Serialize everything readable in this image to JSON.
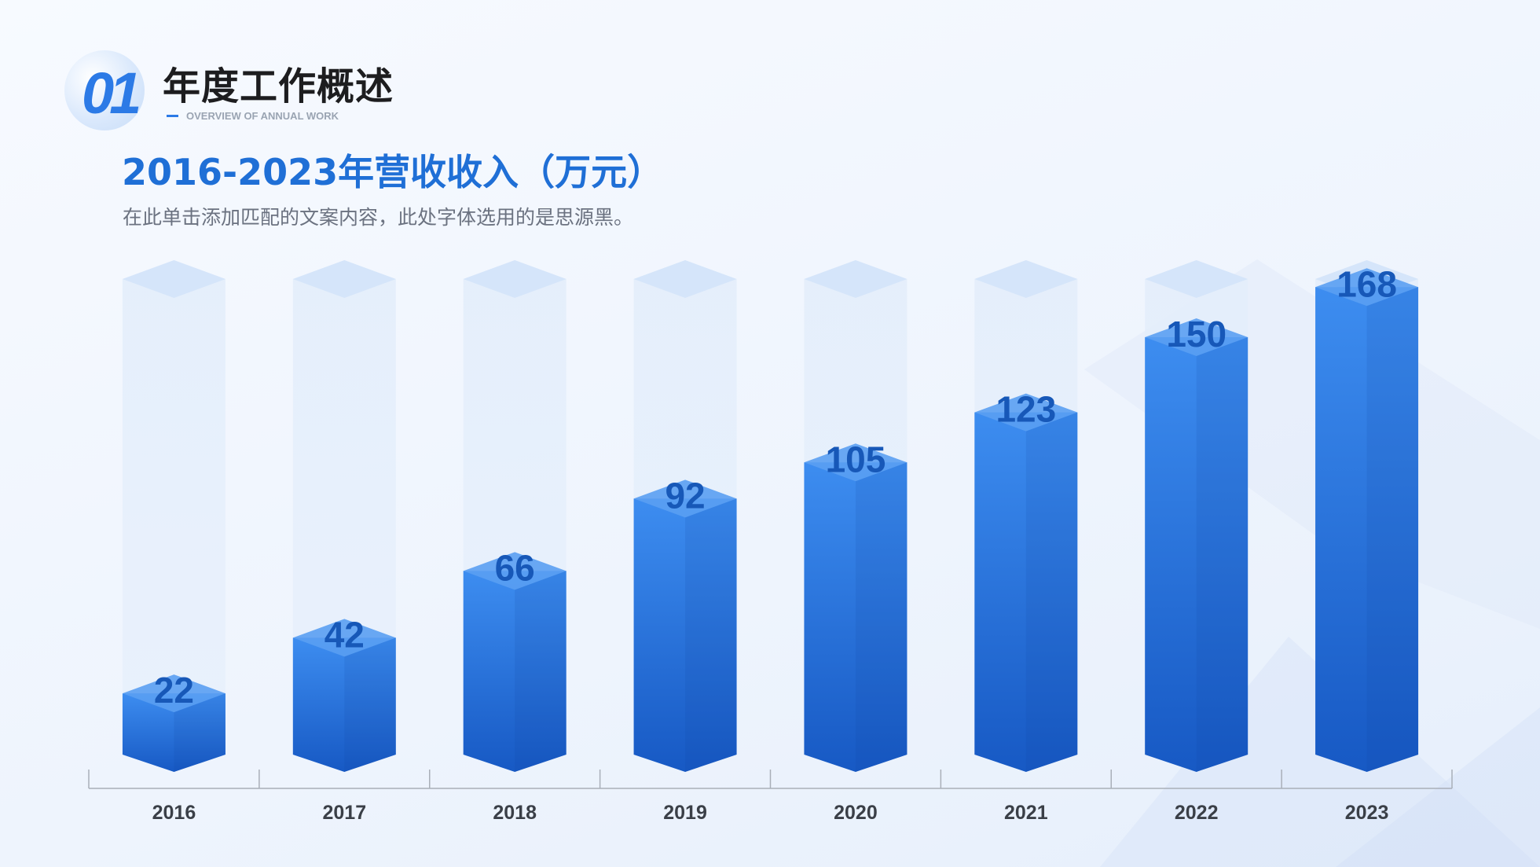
{
  "header": {
    "section_number": "01",
    "section_title": "年度工作概述",
    "section_subtitle": "OVERVIEW OF ANNUAL WORK"
  },
  "chart_title": "2016-2023年营收收入（万元）",
  "chart_description": "在此单击添加匹配的文案内容，此处字体选用的是思源黑。",
  "colors": {
    "accent": "#2c7ae6",
    "title": "#1f6fd6",
    "value_label": "#1758b8",
    "bar_top": "#3d8df0",
    "bar_bottom": "#1759c4",
    "ghost": "#e4eefb"
  },
  "chart_data": {
    "type": "bar",
    "title": "2016-2023年营收收入（万元）",
    "categories": [
      "2016",
      "2017",
      "2018",
      "2019",
      "2020",
      "2021",
      "2022",
      "2023"
    ],
    "values": [
      22,
      42,
      66,
      92,
      105,
      123,
      150,
      168
    ],
    "xlabel": "",
    "ylabel": "",
    "ylim": [
      0,
      200
    ],
    "grid": false,
    "legend": "none"
  }
}
